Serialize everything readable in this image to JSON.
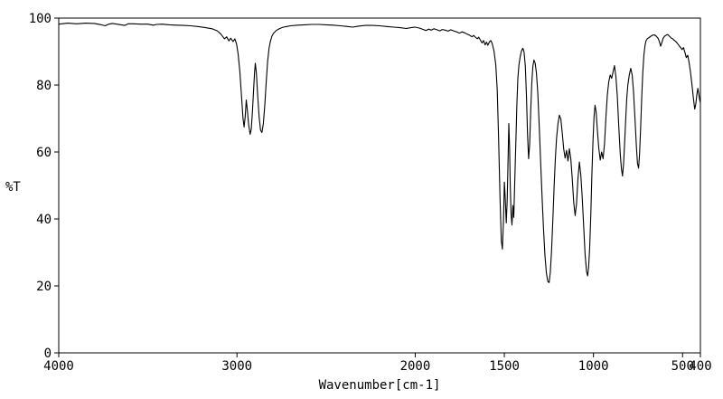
{
  "chart_data": {
    "type": "line",
    "title": "",
    "xlabel": "Wavenumber[cm-1]",
    "ylabel": "%T",
    "line_color": "#000000",
    "background": "#ffffff",
    "x_axis": {
      "min": 4000,
      "max": 400,
      "reversed": true,
      "ticks": [
        4000,
        3000,
        2000,
        1500,
        1000,
        500,
        400
      ]
    },
    "y_axis": {
      "min": 0,
      "max": 100,
      "ticks": [
        0,
        20,
        40,
        60,
        80,
        100
      ]
    },
    "points": [
      [
        4000,
        98.2
      ],
      [
        3950,
        98.5
      ],
      [
        3900,
        98.3
      ],
      [
        3850,
        98.5
      ],
      [
        3800,
        98.4
      ],
      [
        3760,
        98.0
      ],
      [
        3740,
        97.7
      ],
      [
        3720,
        98.2
      ],
      [
        3700,
        98.4
      ],
      [
        3650,
        98.0
      ],
      [
        3630,
        97.8
      ],
      [
        3610,
        98.3
      ],
      [
        3580,
        98.3
      ],
      [
        3540,
        98.2
      ],
      [
        3500,
        98.2
      ],
      [
        3470,
        97.9
      ],
      [
        3450,
        98.1
      ],
      [
        3420,
        98.2
      ],
      [
        3380,
        98.0
      ],
      [
        3340,
        97.9
      ],
      [
        3300,
        97.8
      ],
      [
        3260,
        97.7
      ],
      [
        3220,
        97.5
      ],
      [
        3180,
        97.2
      ],
      [
        3140,
        96.8
      ],
      [
        3110,
        96.2
      ],
      [
        3090,
        95.2
      ],
      [
        3070,
        93.8
      ],
      [
        3058,
        94.4
      ],
      [
        3045,
        93.2
      ],
      [
        3035,
        94.0
      ],
      [
        3022,
        93.0
      ],
      [
        3012,
        93.8
      ],
      [
        3002,
        92.2
      ],
      [
        2994,
        89.5
      ],
      [
        2984,
        84.0
      ],
      [
        2974,
        76.0
      ],
      [
        2966,
        70.0
      ],
      [
        2960,
        67.5
      ],
      [
        2954,
        70.5
      ],
      [
        2948,
        75.5
      ],
      [
        2942,
        72.5
      ],
      [
        2934,
        68.0
      ],
      [
        2926,
        65.3
      ],
      [
        2920,
        66.8
      ],
      [
        2914,
        71.5
      ],
      [
        2908,
        77.5
      ],
      [
        2902,
        83.5
      ],
      [
        2897,
        86.5
      ],
      [
        2891,
        83.5
      ],
      [
        2884,
        77.0
      ],
      [
        2876,
        70.5
      ],
      [
        2868,
        66.5
      ],
      [
        2860,
        65.8
      ],
      [
        2852,
        68.5
      ],
      [
        2844,
        74.0
      ],
      [
        2836,
        81.0
      ],
      [
        2828,
        87.0
      ],
      [
        2820,
        91.0
      ],
      [
        2812,
        93.2
      ],
      [
        2804,
        94.6
      ],
      [
        2796,
        95.4
      ],
      [
        2780,
        96.3
      ],
      [
        2760,
        96.9
      ],
      [
        2740,
        97.3
      ],
      [
        2720,
        97.5
      ],
      [
        2700,
        97.7
      ],
      [
        2660,
        97.9
      ],
      [
        2620,
        98.0
      ],
      [
        2580,
        98.1
      ],
      [
        2540,
        98.1
      ],
      [
        2500,
        98.0
      ],
      [
        2460,
        97.9
      ],
      [
        2420,
        97.7
      ],
      [
        2380,
        97.5
      ],
      [
        2350,
        97.3
      ],
      [
        2320,
        97.6
      ],
      [
        2280,
        97.8
      ],
      [
        2240,
        97.8
      ],
      [
        2200,
        97.7
      ],
      [
        2160,
        97.5
      ],
      [
        2120,
        97.3
      ],
      [
        2080,
        97.1
      ],
      [
        2050,
        96.9
      ],
      [
        2020,
        97.2
      ],
      [
        2000,
        97.3
      ],
      [
        1975,
        97.0
      ],
      [
        1955,
        96.6
      ],
      [
        1940,
        96.3
      ],
      [
        1925,
        96.7
      ],
      [
        1910,
        96.4
      ],
      [
        1895,
        96.8
      ],
      [
        1878,
        96.5
      ],
      [
        1862,
        96.2
      ],
      [
        1848,
        96.6
      ],
      [
        1832,
        96.4
      ],
      [
        1815,
        96.1
      ],
      [
        1800,
        96.5
      ],
      [
        1785,
        96.2
      ],
      [
        1768,
        95.9
      ],
      [
        1752,
        95.5
      ],
      [
        1738,
        95.9
      ],
      [
        1722,
        95.6
      ],
      [
        1708,
        95.2
      ],
      [
        1695,
        94.9
      ],
      [
        1682,
        94.4
      ],
      [
        1672,
        94.8
      ],
      [
        1662,
        94.3
      ],
      [
        1652,
        93.8
      ],
      [
        1644,
        94.3
      ],
      [
        1634,
        93.4
      ],
      [
        1625,
        92.6
      ],
      [
        1617,
        93.3
      ],
      [
        1608,
        92.0
      ],
      [
        1600,
        92.8
      ],
      [
        1592,
        91.9
      ],
      [
        1584,
        92.9
      ],
      [
        1576,
        93.3
      ],
      [
        1568,
        92.4
      ],
      [
        1558,
        90.2
      ],
      [
        1548,
        86.0
      ],
      [
        1540,
        78.5
      ],
      [
        1532,
        64.0
      ],
      [
        1524,
        46.0
      ],
      [
        1517,
        33.5
      ],
      [
        1511,
        31.0
      ],
      [
        1505,
        39.5
      ],
      [
        1500,
        51.0
      ],
      [
        1495,
        46.5
      ],
      [
        1489,
        38.8
      ],
      [
        1484,
        45.5
      ],
      [
        1479,
        58.0
      ],
      [
        1475,
        68.5
      ],
      [
        1471,
        62.0
      ],
      [
        1467,
        50.0
      ],
      [
        1462,
        41.5
      ],
      [
        1457,
        38.2
      ],
      [
        1452,
        44.0
      ],
      [
        1447,
        40.5
      ],
      [
        1442,
        50.5
      ],
      [
        1436,
        62.0
      ],
      [
        1430,
        74.0
      ],
      [
        1424,
        82.0
      ],
      [
        1418,
        86.0
      ],
      [
        1411,
        88.5
      ],
      [
        1404,
        90.2
      ],
      [
        1396,
        91.0
      ],
      [
        1389,
        89.8
      ],
      [
        1382,
        85.5
      ],
      [
        1376,
        77.0
      ],
      [
        1370,
        65.5
      ],
      [
        1364,
        58.0
      ],
      [
        1358,
        62.5
      ],
      [
        1352,
        72.0
      ],
      [
        1346,
        80.5
      ],
      [
        1340,
        85.5
      ],
      [
        1334,
        87.5
      ],
      [
        1327,
        86.5
      ],
      [
        1320,
        83.5
      ],
      [
        1312,
        77.5
      ],
      [
        1304,
        67.5
      ],
      [
        1296,
        56.5
      ],
      [
        1288,
        46.0
      ],
      [
        1280,
        37.0
      ],
      [
        1272,
        29.0
      ],
      [
        1264,
        23.8
      ],
      [
        1256,
        21.3
      ],
      [
        1249,
        21.0
      ],
      [
        1242,
        24.0
      ],
      [
        1235,
        30.5
      ],
      [
        1228,
        39.5
      ],
      [
        1221,
        49.5
      ],
      [
        1214,
        58.0
      ],
      [
        1207,
        64.0
      ],
      [
        1199,
        68.5
      ],
      [
        1191,
        71.0
      ],
      [
        1183,
        69.8
      ],
      [
        1175,
        65.5
      ],
      [
        1167,
        61.0
      ],
      [
        1159,
        58.2
      ],
      [
        1151,
        60.5
      ],
      [
        1143,
        57.3
      ],
      [
        1135,
        61.0
      ],
      [
        1127,
        58.0
      ],
      [
        1119,
        52.0
      ],
      [
        1111,
        45.0
      ],
      [
        1103,
        41.0
      ],
      [
        1095,
        44.5
      ],
      [
        1087,
        52.0
      ],
      [
        1079,
        57.0
      ],
      [
        1071,
        53.0
      ],
      [
        1063,
        46.5
      ],
      [
        1055,
        38.0
      ],
      [
        1047,
        29.5
      ],
      [
        1039,
        24.3
      ],
      [
        1033,
        23.0
      ],
      [
        1027,
        25.5
      ],
      [
        1021,
        31.5
      ],
      [
        1015,
        41.0
      ],
      [
        1009,
        53.0
      ],
      [
        1003,
        63.0
      ],
      [
        997,
        70.5
      ],
      [
        991,
        74.0
      ],
      [
        985,
        72.0
      ],
      [
        978,
        66.5
      ],
      [
        970,
        61.0
      ],
      [
        962,
        57.6
      ],
      [
        954,
        60.0
      ],
      [
        946,
        58.0
      ],
      [
        938,
        62.5
      ],
      [
        930,
        70.5
      ],
      [
        922,
        77.0
      ],
      [
        914,
        81.0
      ],
      [
        906,
        83.0
      ],
      [
        898,
        82.0
      ],
      [
        890,
        84.0
      ],
      [
        882,
        85.8
      ],
      [
        874,
        82.5
      ],
      [
        866,
        76.5
      ],
      [
        858,
        67.5
      ],
      [
        850,
        59.5
      ],
      [
        843,
        55.0
      ],
      [
        837,
        52.8
      ],
      [
        831,
        56.5
      ],
      [
        825,
        63.0
      ],
      [
        819,
        70.0
      ],
      [
        813,
        76.0
      ],
      [
        807,
        80.0
      ],
      [
        799,
        83.0
      ],
      [
        791,
        85.0
      ],
      [
        783,
        83.0
      ],
      [
        775,
        78.0
      ],
      [
        767,
        70.0
      ],
      [
        759,
        61.5
      ],
      [
        753,
        56.5
      ],
      [
        747,
        55.2
      ],
      [
        741,
        59.5
      ],
      [
        735,
        67.5
      ],
      [
        729,
        76.5
      ],
      [
        723,
        84.0
      ],
      [
        717,
        89.0
      ],
      [
        711,
        91.8
      ],
      [
        705,
        93.2
      ],
      [
        698,
        93.8
      ],
      [
        688,
        94.2
      ],
      [
        678,
        94.6
      ],
      [
        668,
        94.9
      ],
      [
        658,
        95.0
      ],
      [
        648,
        94.6
      ],
      [
        638,
        94.0
      ],
      [
        630,
        93.0
      ],
      [
        623,
        91.6
      ],
      [
        617,
        92.6
      ],
      [
        609,
        94.0
      ],
      [
        601,
        94.6
      ],
      [
        592,
        94.9
      ],
      [
        583,
        95.1
      ],
      [
        574,
        94.6
      ],
      [
        565,
        94.1
      ],
      [
        556,
        93.8
      ],
      [
        547,
        93.4
      ],
      [
        538,
        93.0
      ],
      [
        529,
        92.4
      ],
      [
        520,
        91.8
      ],
      [
        511,
        91.2
      ],
      [
        503,
        90.6
      ],
      [
        495,
        91.2
      ],
      [
        487,
        89.8
      ],
      [
        479,
        88.2
      ],
      [
        471,
        88.9
      ],
      [
        463,
        86.5
      ],
      [
        455,
        83.5
      ],
      [
        447,
        80.0
      ],
      [
        439,
        76.0
      ],
      [
        432,
        72.8
      ],
      [
        426,
        74.3
      ],
      [
        420,
        77.2
      ],
      [
        414,
        79.0
      ],
      [
        408,
        77.0
      ],
      [
        403,
        75.3
      ],
      [
        400,
        74.8
      ]
    ]
  }
}
